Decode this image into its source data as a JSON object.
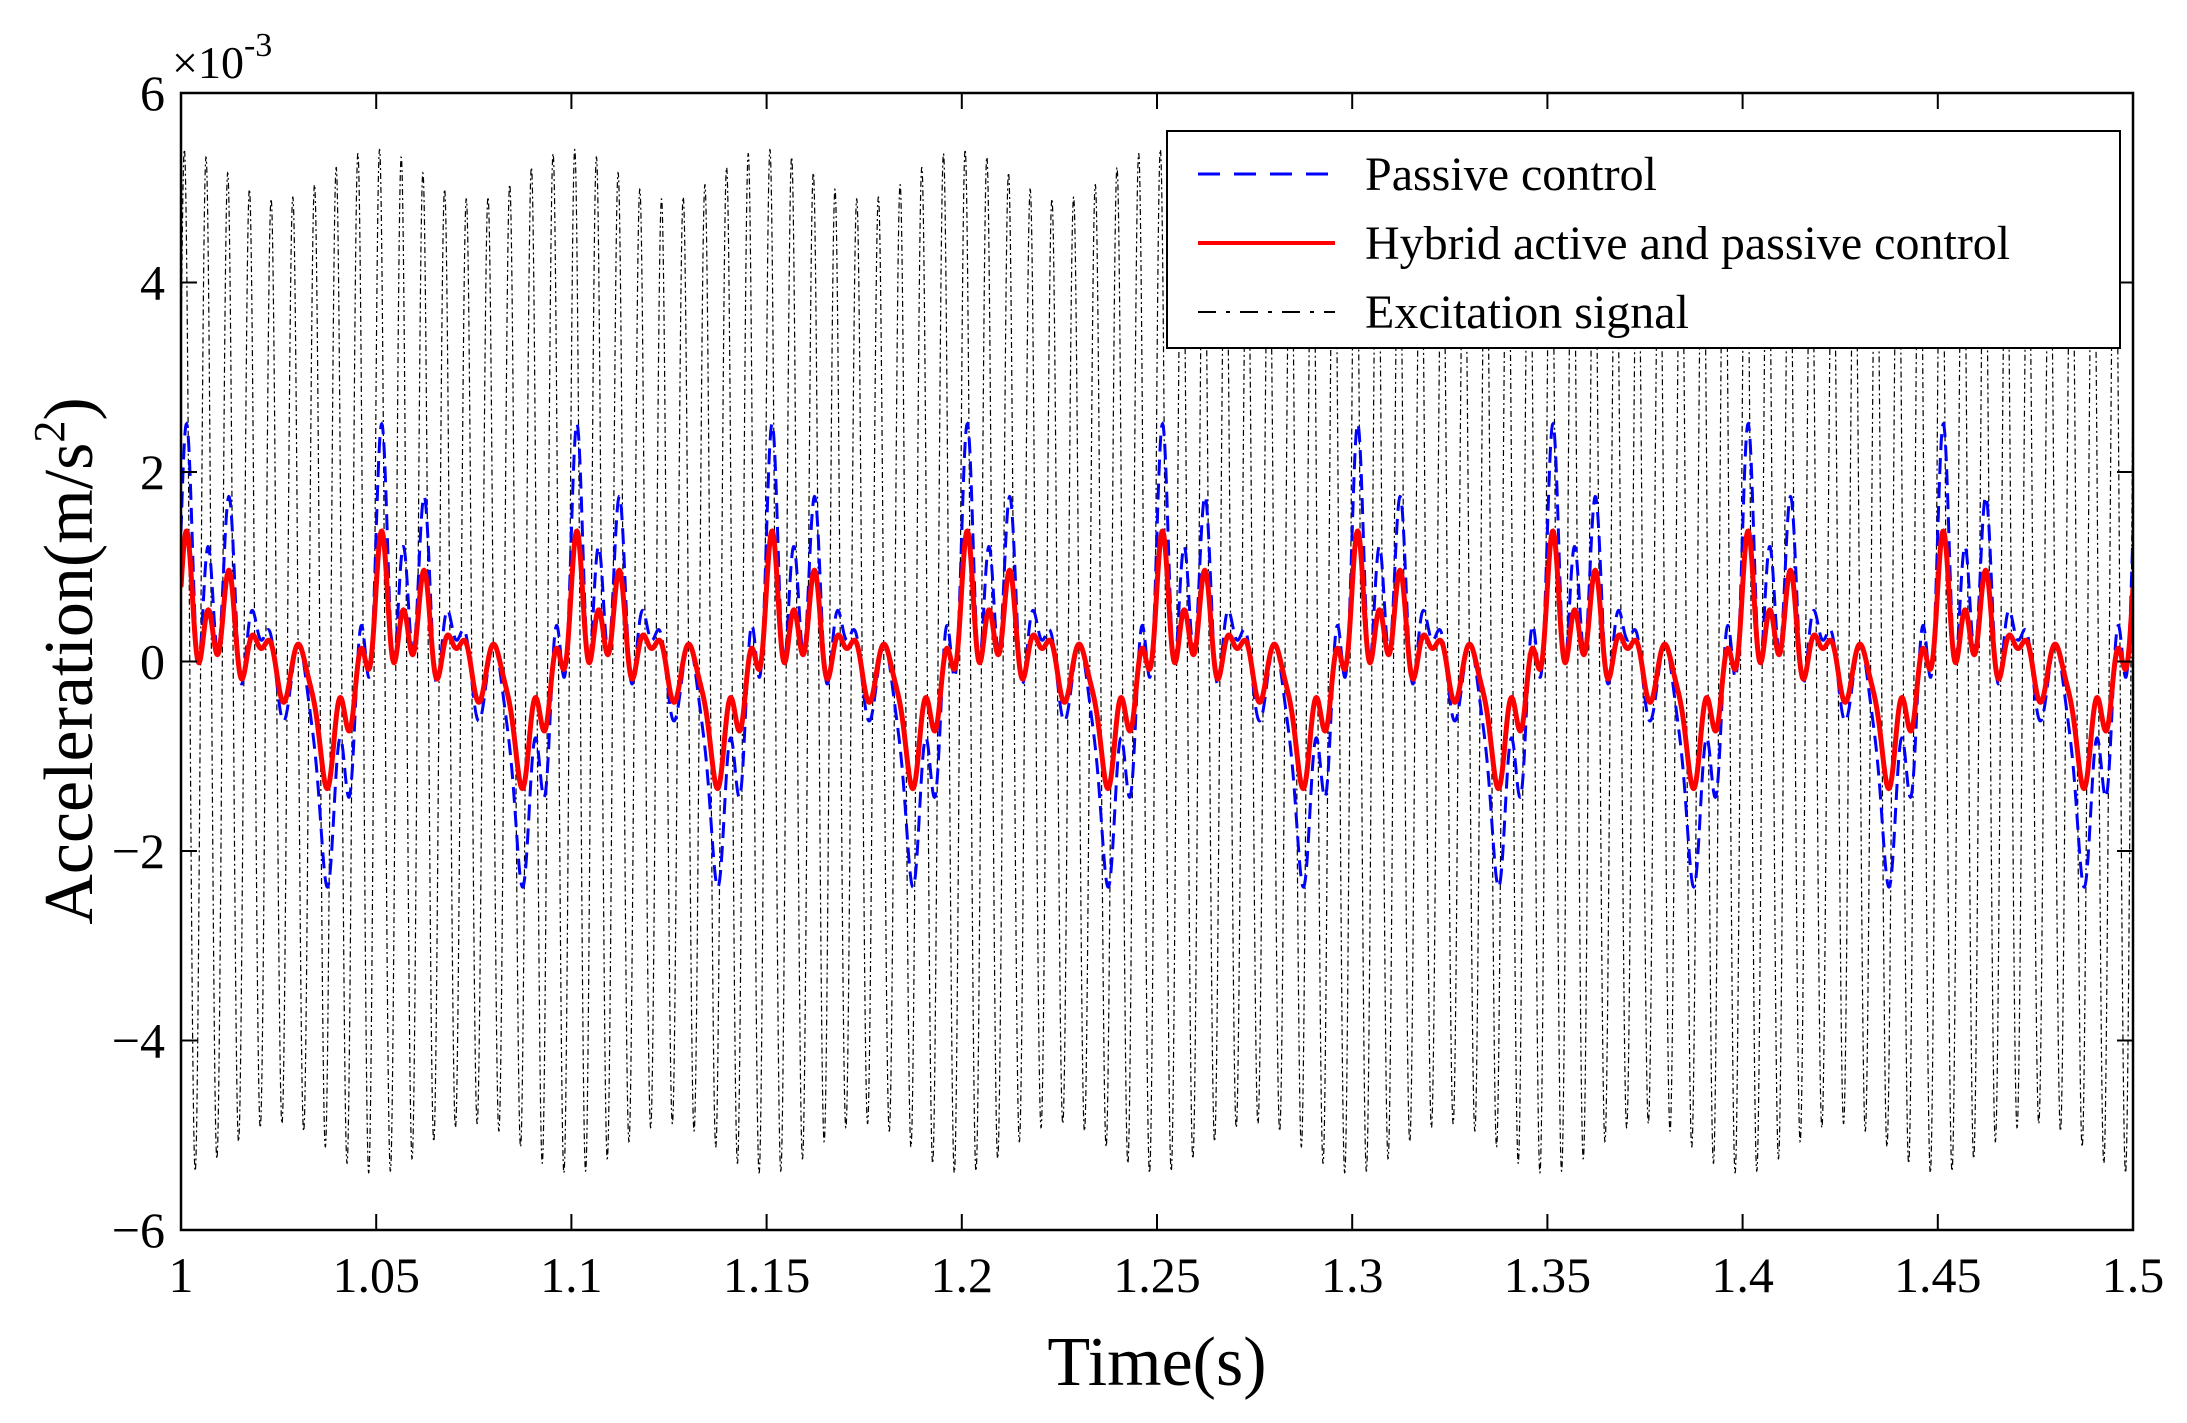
{
  "chart_data": {
    "type": "line",
    "title": "",
    "xlabel": "Time(s)",
    "ylabel": "Acceleration(m/s",
    "ylabel_superscript": "2",
    "ylabel_close": ")",
    "y_multiplier_base": "×10",
    "y_multiplier_exp": "-3",
    "xlim": [
      1,
      1.5
    ],
    "ylim": [
      -6,
      6
    ],
    "x_ticks": [
      1,
      1.05,
      1.1,
      1.15,
      1.2,
      1.25,
      1.3,
      1.35,
      1.4,
      1.45,
      1.5
    ],
    "x_tick_labels": [
      "1",
      "1.05",
      "1.1",
      "1.15",
      "1.2",
      "1.25",
      "1.3",
      "1.35",
      "1.4",
      "1.45",
      "1.5"
    ],
    "y_ticks": [
      -6,
      -4,
      -2,
      0,
      2,
      4,
      6
    ],
    "y_tick_labels": [
      "−6",
      "−4",
      "−2",
      "0",
      "2",
      "4",
      "6"
    ],
    "grid": false,
    "legend_position": "top-right",
    "series": [
      {
        "name": "Excitation signal",
        "color": "#000000",
        "style": "dash-dot",
        "amplitude": 5.3,
        "frequency_hz": 180,
        "beat_period_s": 0.05
      },
      {
        "name": "Passive control",
        "color": "#0000ff",
        "style": "dashed",
        "period_s": 0.05,
        "peak": 2.85,
        "trough": -2.9
      },
      {
        "name": "Hybrid active and passive control",
        "color": "#ff0000",
        "style": "solid",
        "period_s": 0.05,
        "peak": 1.75,
        "trough": -1.65
      }
    ],
    "legend_entries": [
      {
        "label": "Passive control",
        "color": "#0000ff",
        "style": "dashed"
      },
      {
        "label": "Hybrid active and passive control",
        "color": "#ff0000",
        "style": "solid"
      },
      {
        "label": "Excitation signal",
        "color": "#000000",
        "style": "dash-dot"
      }
    ]
  }
}
